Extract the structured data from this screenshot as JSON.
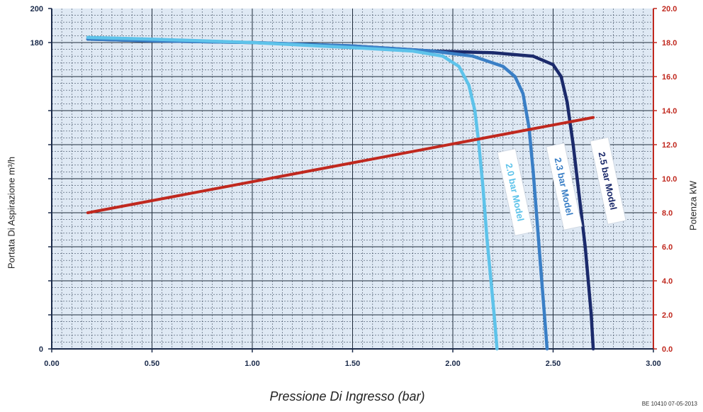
{
  "chart_data": {
    "type": "line",
    "xlabel": "Pressione Di Ingresso (bar)",
    "ylabel_left": "Portata Di Aspirazione m³/h",
    "ylabel_right": "Potenza kW",
    "xlim": [
      0,
      3
    ],
    "ylim_left": [
      0,
      200
    ],
    "ylim_right": [
      0,
      20
    ],
    "x_ticks": [
      "0.00",
      "0.50",
      "1.00",
      "1.50",
      "2.00",
      "2.50",
      "3.00"
    ],
    "y_left_ticks": [
      "0",
      "",
      "",
      "",
      "",
      "",
      "",
      "",
      "180",
      "200"
    ],
    "y_right_ticks": [
      "0.0",
      "2.0",
      "4.0",
      "6.0",
      "8.0",
      "10.0",
      "12.0",
      "14.0",
      "16.0",
      "18.0",
      "20.0"
    ],
    "grid": true,
    "series": [
      {
        "name": "2.5 bar Model",
        "axis": "left",
        "color": "#1b2a6b",
        "points": [
          [
            0.18,
            182
          ],
          [
            0.5,
            181
          ],
          [
            1.0,
            180
          ],
          [
            1.5,
            178
          ],
          [
            1.9,
            175
          ],
          [
            2.2,
            174
          ],
          [
            2.4,
            172
          ],
          [
            2.5,
            167
          ],
          [
            2.54,
            160
          ],
          [
            2.57,
            145
          ],
          [
            2.6,
            120
          ],
          [
            2.63,
            90
          ],
          [
            2.66,
            60
          ],
          [
            2.69,
            20
          ],
          [
            2.7,
            0
          ]
        ]
      },
      {
        "name": "2.3 bar Model",
        "axis": "left",
        "color": "#3a7fc6",
        "points": [
          [
            0.18,
            182
          ],
          [
            0.5,
            181
          ],
          [
            1.0,
            180
          ],
          [
            1.5,
            178
          ],
          [
            1.9,
            175
          ],
          [
            2.1,
            172
          ],
          [
            2.25,
            166
          ],
          [
            2.31,
            160
          ],
          [
            2.35,
            150
          ],
          [
            2.38,
            130
          ],
          [
            2.4,
            105
          ],
          [
            2.42,
            75
          ],
          [
            2.44,
            45
          ],
          [
            2.46,
            15
          ],
          [
            2.47,
            0
          ]
        ]
      },
      {
        "name": "2.0 bar Model",
        "axis": "left",
        "color": "#5ec3ea",
        "points": [
          [
            0.18,
            183
          ],
          [
            0.5,
            182
          ],
          [
            1.0,
            180
          ],
          [
            1.5,
            177
          ],
          [
            1.8,
            175
          ],
          [
            1.95,
            172
          ],
          [
            2.03,
            166
          ],
          [
            2.08,
            155
          ],
          [
            2.11,
            140
          ],
          [
            2.13,
            120
          ],
          [
            2.15,
            95
          ],
          [
            2.17,
            65
          ],
          [
            2.19,
            40
          ],
          [
            2.21,
            15
          ],
          [
            2.22,
            0
          ]
        ]
      },
      {
        "name": "",
        "axis": "right",
        "color": "#c0281e",
        "points": [
          [
            0.18,
            8.0
          ],
          [
            2.7,
            13.6
          ]
        ]
      }
    ],
    "annotations": [
      "2.0 bar Model",
      "2.3 bar Model",
      "2.5 bar Model"
    ]
  },
  "footer": {
    "code": "BE 10410 07-05-2013"
  }
}
